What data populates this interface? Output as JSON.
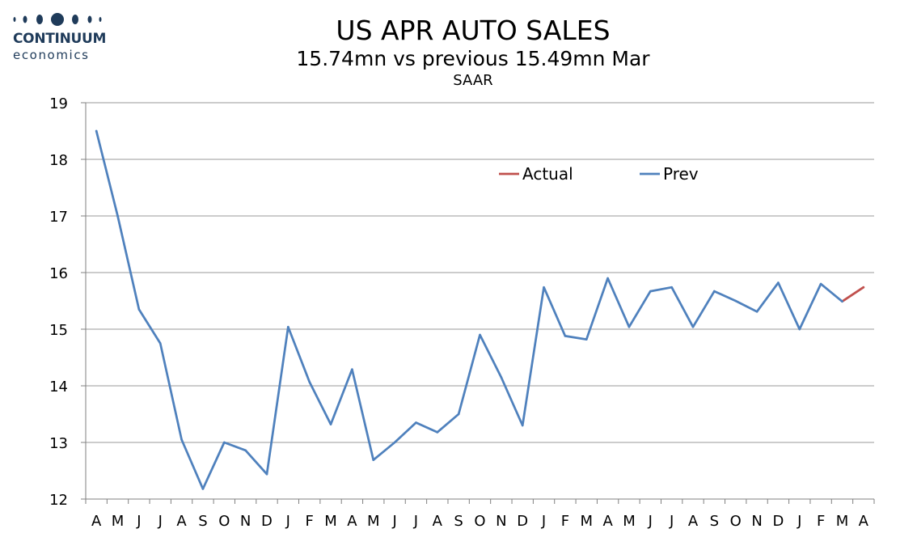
{
  "logo": {
    "name": "CONTINUUM",
    "sub": "economics"
  },
  "chart_data": {
    "type": "line",
    "title": "US APR AUTO SALES",
    "subtitle": "15.74mn vs previous 15.49mn Mar",
    "unit": "SAAR",
    "xlabel": "",
    "ylabel": "",
    "categories": [
      "A",
      "M",
      "J",
      "J",
      "A",
      "S",
      "O",
      "N",
      "D",
      "J",
      "F",
      "M",
      "A",
      "M",
      "J",
      "J",
      "A",
      "S",
      "O",
      "N",
      "D",
      "J",
      "F",
      "M",
      "A",
      "M",
      "J",
      "J",
      "A",
      "S",
      "O",
      "N",
      "D",
      "J",
      "F",
      "M",
      "A"
    ],
    "ylim": [
      12,
      19
    ],
    "yticks": [
      12,
      13,
      14,
      15,
      16,
      17,
      18,
      19
    ],
    "grid": true,
    "legend_position": "top-right (inside plot)",
    "series": [
      {
        "name": "Actual",
        "color": "#c0504d",
        "values": [
          null,
          null,
          null,
          null,
          null,
          null,
          null,
          null,
          null,
          null,
          null,
          null,
          null,
          null,
          null,
          null,
          null,
          null,
          null,
          null,
          null,
          null,
          null,
          null,
          null,
          null,
          null,
          null,
          null,
          null,
          null,
          null,
          null,
          null,
          null,
          15.49,
          15.74
        ]
      },
      {
        "name": "Prev",
        "color": "#4f81bd",
        "values": [
          18.5,
          17.0,
          15.35,
          14.75,
          13.05,
          12.18,
          13.0,
          12.86,
          12.44,
          15.04,
          14.07,
          13.32,
          14.29,
          12.69,
          13.0,
          13.35,
          13.18,
          13.5,
          14.9,
          14.15,
          13.3,
          15.74,
          14.88,
          14.82,
          15.9,
          15.04,
          15.67,
          15.74,
          15.04,
          15.67,
          15.5,
          15.31,
          15.82,
          15.0,
          15.8,
          15.49,
          null
        ]
      }
    ]
  }
}
